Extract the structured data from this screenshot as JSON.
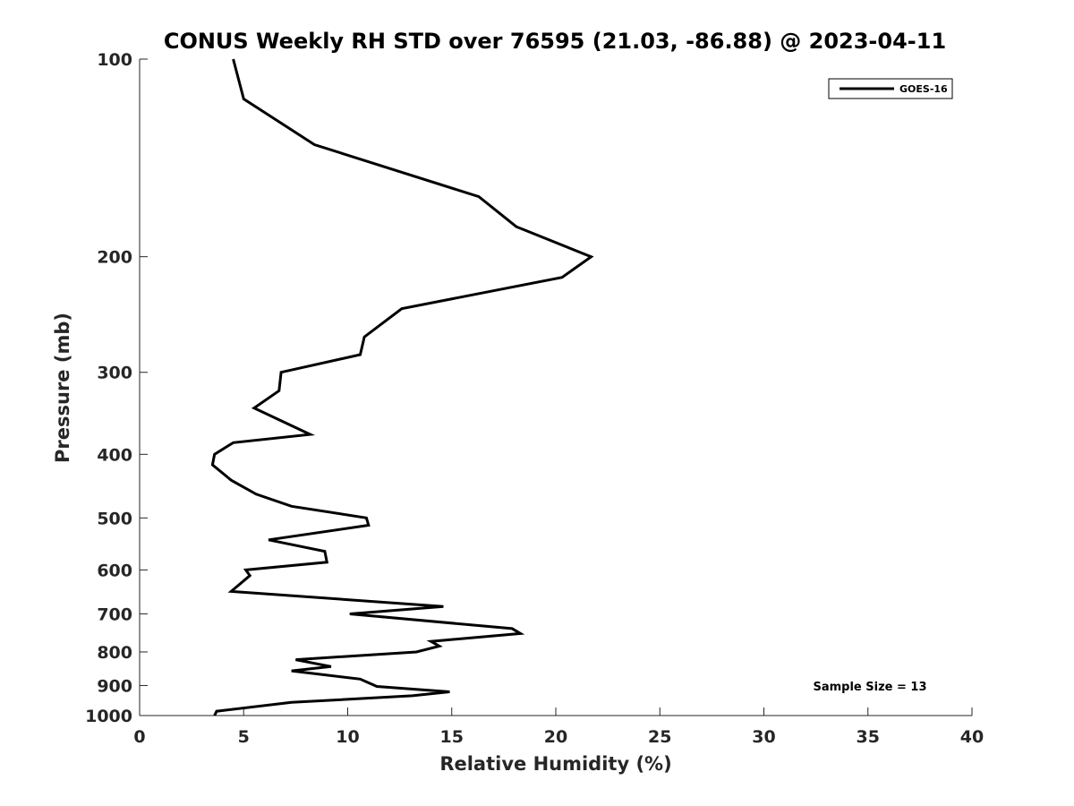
{
  "chart_data": {
    "type": "line",
    "title": "CONUS Weekly RH STD over 76595 (21.03, -86.88) @ 2023-04-11",
    "xlabel": "Relative Humidity (%)",
    "ylabel": "Pressure (mb)",
    "xlim": [
      0,
      40
    ],
    "ylim": [
      100,
      1000
    ],
    "y_scale": "log",
    "y_reversed": true,
    "x_ticks": [
      0,
      5,
      10,
      15,
      20,
      25,
      30,
      35,
      40
    ],
    "x_tick_labels": [
      "0",
      "5",
      "10",
      "15",
      "20",
      "25",
      "30",
      "35",
      "40"
    ],
    "y_ticks": [
      100,
      200,
      300,
      400,
      500,
      600,
      700,
      800,
      900,
      1000
    ],
    "y_tick_labels": [
      "100",
      "200",
      "300",
      "400",
      "500",
      "600",
      "700",
      "800",
      "900",
      "1000"
    ],
    "grid": false,
    "legend_position": "top-right",
    "annotation": "Sample Size = 13",
    "series": [
      {
        "name": "GOES-16",
        "color": "#000000",
        "x": [
          4.5,
          5.0,
          8.4,
          16.3,
          18.1,
          21.7,
          20.3,
          12.6,
          10.8,
          10.6,
          6.8,
          6.7,
          5.5,
          8.2,
          4.5,
          3.6,
          3.5,
          4.4,
          5.6,
          7.3,
          10.9,
          11.0,
          6.2,
          8.9,
          9.0,
          5.1,
          5.3,
          4.4,
          14.6,
          10.1,
          17.9,
          18.3,
          14.0,
          14.4,
          13.3,
          7.5,
          9.2,
          7.3,
          10.6,
          11.4,
          14.9,
          13.1,
          7.3,
          3.7,
          3.6
        ],
        "y": [
          100,
          115,
          135,
          162,
          180,
          200,
          215,
          240,
          265,
          282,
          300,
          320,
          340,
          373,
          384,
          400,
          415,
          438,
          460,
          480,
          500,
          513,
          540,
          562,
          584,
          600,
          612,
          647,
          682,
          700,
          737,
          750,
          771,
          784,
          800,
          822,
          842,
          855,
          880,
          903,
          920,
          933,
          955,
          985,
          1000
        ]
      }
    ]
  }
}
